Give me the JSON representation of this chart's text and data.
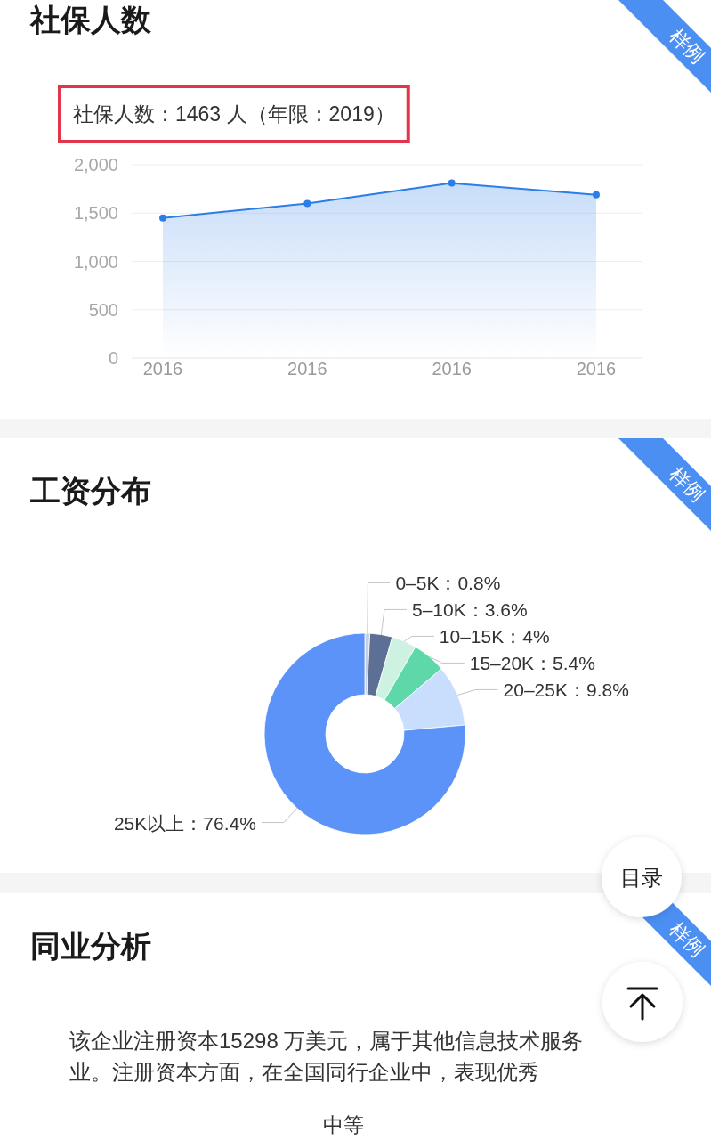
{
  "chart_data": [
    {
      "type": "area",
      "title": "社保人数",
      "subtitle": "社保人数：1463 人（年限：2019）",
      "categories": [
        "2016",
        "2016",
        "2016",
        "2016"
      ],
      "series": [
        {
          "color": "#2b7de9",
          "values": [
            1450,
            1600,
            1810,
            1690
          ]
        }
      ],
      "ylim": [
        0,
        2000
      ],
      "yticks": [
        0,
        500,
        {
          "value": 1000,
          "label": "1,000"
        },
        {
          "value": 1500,
          "label": "1,500"
        },
        {
          "value": 2000,
          "label": "2,000"
        }
      ],
      "grid": "y",
      "marker": "circle",
      "annotations": [
        "样例"
      ]
    },
    {
      "type": "donut",
      "title": "工资分布",
      "categories": [
        "0–5K",
        "5–10K",
        "10–15K",
        "15–20K",
        "20–25K",
        "25K以上"
      ],
      "values": [
        0.8,
        3.6,
        4,
        5.4,
        9.8,
        76.4
      ],
      "colors": [
        "#c6d0e3",
        "#5d6f95",
        "#cdf2e2",
        "#5ed8a8",
        "#c9ddfc",
        "#5b93f8"
      ],
      "value_labels": [
        "：0.8%",
        "：3.6%",
        "：4%",
        "：5.4%",
        "：9.8%",
        "：76.4%"
      ],
      "annotations": [
        "样例"
      ]
    },
    {
      "type": "other",
      "title": "同业分析",
      "annotations": [
        "样例",
        "该企业注册资本15298 万美元，属于其他信息技术服务业。注册资本方面，在全国同行企业中，表现优秀",
        "中等",
        "目录"
      ]
    }
  ]
}
